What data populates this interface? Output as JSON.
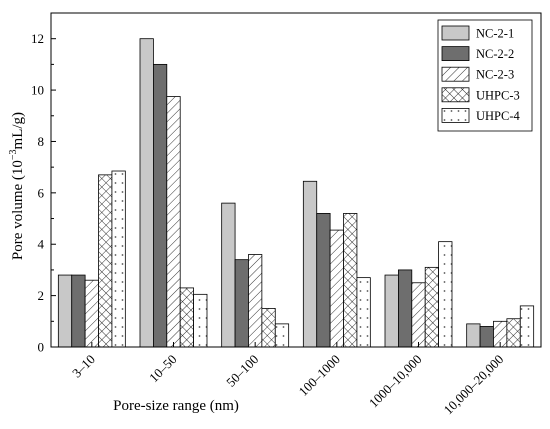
{
  "chart_data": {
    "type": "bar",
    "title": "",
    "xlabel": "Pore-size range (nm)",
    "ylabel_prefix": "Pore volume (10",
    "ylabel_exponent": "−3",
    "ylabel_suffix": "mL/g)",
    "categories": [
      "3–10",
      "10–50",
      "50–100",
      "100–1000",
      "1000–10,000",
      "10,000–20,000"
    ],
    "ylim": [
      0,
      13
    ],
    "yticks": [
      0,
      2,
      4,
      6,
      8,
      10,
      12
    ],
    "grid": false,
    "legend_position": "top-right",
    "series": [
      {
        "name": "NC-2-1",
        "pattern": "solid-light-gray",
        "color": "#c8c8c8",
        "values": [
          2.8,
          12.0,
          5.6,
          6.45,
          2.8,
          0.9
        ]
      },
      {
        "name": "NC-2-2",
        "pattern": "solid-dark-gray",
        "color": "#6e6e6e",
        "values": [
          2.8,
          11.0,
          3.4,
          5.2,
          3.0,
          0.8
        ]
      },
      {
        "name": "NC-2-3",
        "pattern": "diagonal-hatch",
        "color": "#ffffff",
        "values": [
          2.6,
          9.75,
          3.6,
          4.55,
          2.5,
          1.0
        ]
      },
      {
        "name": "UHPC-3",
        "pattern": "cross-hatch",
        "color": "#ffffff",
        "values": [
          6.7,
          2.3,
          1.5,
          5.2,
          3.1,
          1.1
        ]
      },
      {
        "name": "UHPC-4",
        "pattern": "dots",
        "color": "#ffffff",
        "values": [
          6.85,
          2.05,
          0.9,
          2.7,
          4.1,
          1.6
        ]
      }
    ]
  }
}
